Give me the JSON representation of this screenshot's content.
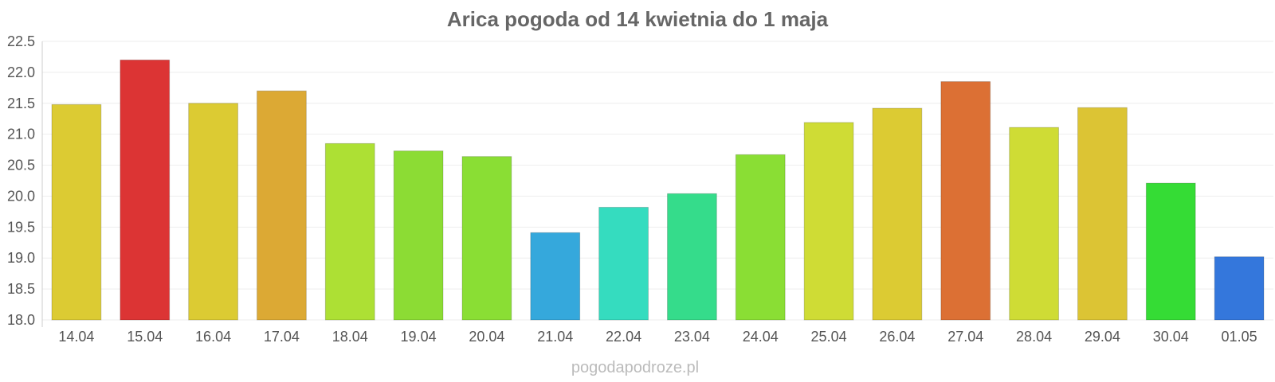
{
  "chart_data": {
    "type": "bar",
    "title": "Arica pogoda od 14 kwietnia do 1 maja",
    "xlabel": "",
    "ylabel": "",
    "ylim": [
      18.0,
      22.5
    ],
    "yticks": [
      "18.0",
      "18.5",
      "19.0",
      "19.5",
      "20.0",
      "20.5",
      "21.0",
      "21.5",
      "22.0",
      "22.5"
    ],
    "grid": true,
    "categories": [
      "14.04",
      "15.04",
      "16.04",
      "17.04",
      "18.04",
      "19.04",
      "20.04",
      "21.04",
      "22.04",
      "23.04",
      "24.04",
      "25.04",
      "26.04",
      "27.04",
      "28.04",
      "29.04",
      "30.04",
      "01.05"
    ],
    "values": [
      21.48,
      22.2,
      21.5,
      21.7,
      20.85,
      20.73,
      20.64,
      19.41,
      19.82,
      20.04,
      20.67,
      21.19,
      21.42,
      21.85,
      21.11,
      21.43,
      20.21,
      19.02
    ],
    "colors": [
      "#dccb33",
      "#dc3434",
      "#dccb33",
      "#dca934",
      "#ade034",
      "#8cdc34",
      "#8ade34",
      "#35a8dc",
      "#35dcbf",
      "#35dc8b",
      "#8ade34",
      "#cfdc35",
      "#dccb33",
      "#dc7034",
      "#cfdc35",
      "#dcc434",
      "#35dc35",
      "#3477dc"
    ]
  },
  "footer": "pogodapodroze.pl"
}
